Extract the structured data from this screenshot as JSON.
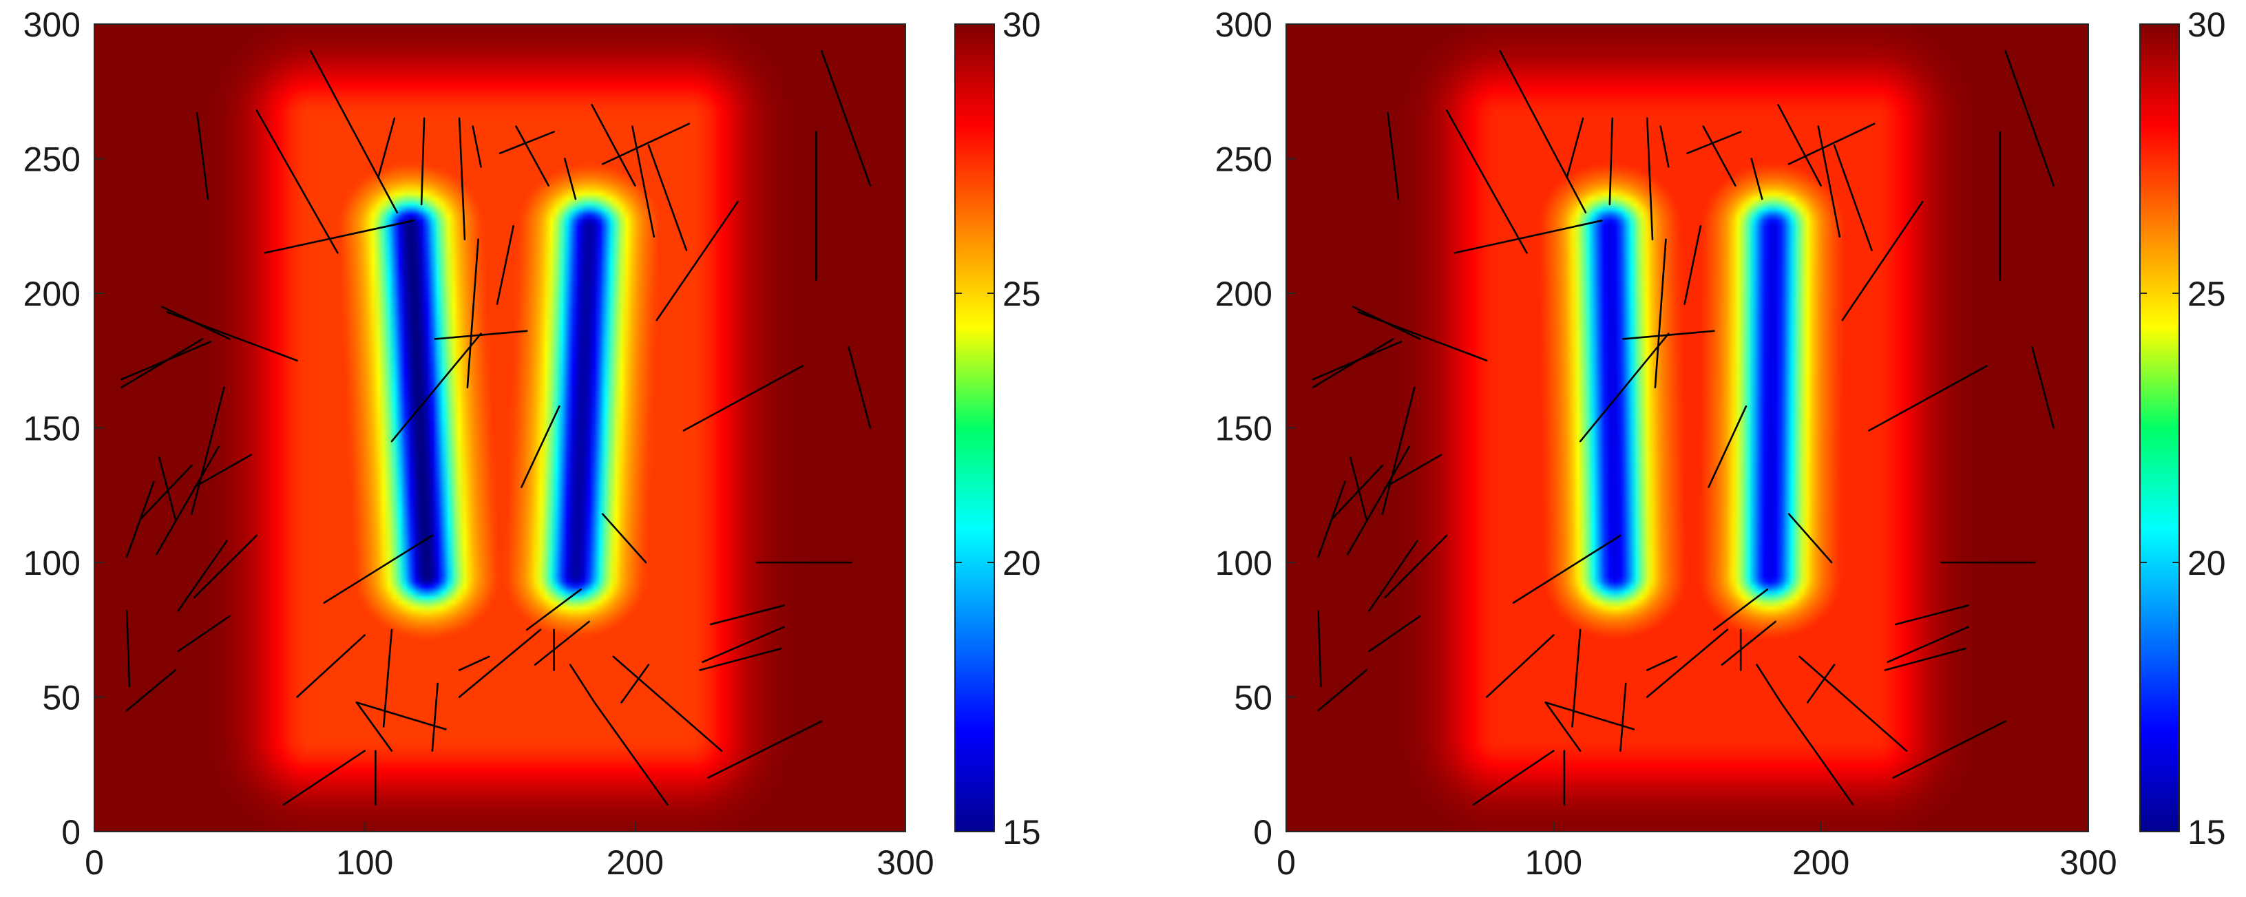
{
  "chart_data": [
    {
      "type": "heatmap",
      "title": "",
      "xlabel": "",
      "ylabel": "",
      "xlim": [
        0,
        300
      ],
      "ylim": [
        0,
        300
      ],
      "xticks": [
        "0",
        "100",
        "200",
        "300"
      ],
      "yticks": [
        "0",
        "50",
        "100",
        "150",
        "200",
        "250",
        "300"
      ],
      "colorbar": {
        "min": 15,
        "max": 30,
        "ticks": [
          "15",
          "20",
          "25",
          "30"
        ],
        "colormap": "jet"
      },
      "grid": false,
      "field": {
        "background": 30,
        "channels": [
          {
            "x_bottom": 123,
            "x_top": 117,
            "y_from": 95,
            "y_to": 225,
            "min_value": 15
          },
          {
            "x_bottom": 178,
            "x_top": 183,
            "y_from": 95,
            "y_to": 225,
            "min_value": 15.5
          }
        ],
        "influence_zone": {
          "x_from": 80,
          "x_to": 220,
          "y_from": 35,
          "y_to": 265,
          "value_near_channels": 25
        }
      },
      "fractures": [
        [
          [
            80,
            290
          ],
          [
            112,
            230
          ]
        ],
        [
          [
            38,
            267
          ],
          [
            42,
            235
          ]
        ],
        [
          [
            60,
            268
          ],
          [
            90,
            215
          ]
        ],
        [
          [
            63,
            215
          ],
          [
            118,
            227
          ]
        ],
        [
          [
            25,
            195
          ],
          [
            50,
            183
          ]
        ],
        [
          [
            27,
            193
          ],
          [
            75,
            175
          ]
        ],
        [
          [
            10,
            168
          ],
          [
            43,
            182
          ]
        ],
        [
          [
            10,
            165
          ],
          [
            40,
            183
          ]
        ],
        [
          [
            12,
            102
          ],
          [
            22,
            130
          ]
        ],
        [
          [
            17,
            116
          ],
          [
            36,
            136
          ]
        ],
        [
          [
            31,
            82
          ],
          [
            49,
            108
          ]
        ],
        [
          [
            48,
            165
          ],
          [
            36,
            118
          ]
        ],
        [
          [
            46,
            143
          ],
          [
            23,
            103
          ]
        ],
        [
          [
            24,
            139
          ],
          [
            30,
            116
          ]
        ],
        [
          [
            37,
            128
          ],
          [
            58,
            140
          ]
        ],
        [
          [
            37,
            87
          ],
          [
            60,
            110
          ]
        ],
        [
          [
            31,
            67
          ],
          [
            50,
            80
          ]
        ],
        [
          [
            12,
            82
          ],
          [
            13,
            54
          ]
        ],
        [
          [
            12,
            45
          ],
          [
            30,
            60
          ]
        ],
        [
          [
            70,
            10
          ],
          [
            100,
            30
          ]
        ],
        [
          [
            104,
            30
          ],
          [
            104,
            10
          ]
        ],
        [
          [
            97,
            48
          ],
          [
            110,
            30
          ]
        ],
        [
          [
            97,
            48
          ],
          [
            130,
            38
          ]
        ],
        [
          [
            127,
            55
          ],
          [
            125,
            30
          ]
        ],
        [
          [
            146,
            65
          ],
          [
            135,
            60
          ]
        ],
        [
          [
            75,
            50
          ],
          [
            100,
            73
          ]
        ],
        [
          [
            107,
            39
          ],
          [
            110,
            75
          ]
        ],
        [
          [
            85,
            85
          ],
          [
            125,
            110
          ]
        ],
        [
          [
            110,
            145
          ],
          [
            143,
            185
          ]
        ],
        [
          [
            126,
            183
          ],
          [
            160,
            186
          ]
        ],
        [
          [
            138,
            165
          ],
          [
            142,
            220
          ]
        ],
        [
          [
            158,
            128
          ],
          [
            172,
            158
          ]
        ],
        [
          [
            149,
            196
          ],
          [
            155,
            225
          ]
        ],
        [
          [
            105,
            243
          ],
          [
            111,
            265
          ]
        ],
        [
          [
            121,
            233
          ],
          [
            122,
            265
          ]
        ],
        [
          [
            143,
            247
          ],
          [
            140,
            262
          ]
        ],
        [
          [
            135,
            265
          ],
          [
            137,
            220
          ]
        ],
        [
          [
            150,
            252
          ],
          [
            170,
            260
          ]
        ],
        [
          [
            156,
            262
          ],
          [
            168,
            240
          ]
        ],
        [
          [
            188,
            248
          ],
          [
            220,
            263
          ]
        ],
        [
          [
            174,
            250
          ],
          [
            178,
            235
          ]
        ],
        [
          [
            184,
            270
          ],
          [
            200,
            240
          ]
        ],
        [
          [
            199,
            262
          ],
          [
            207,
            221
          ]
        ],
        [
          [
            205,
            255
          ],
          [
            219,
            216
          ]
        ],
        [
          [
            208,
            190
          ],
          [
            238,
            234
          ]
        ],
        [
          [
            218,
            149
          ],
          [
            262,
            173
          ]
        ],
        [
          [
            188,
            118
          ],
          [
            204,
            100
          ]
        ],
        [
          [
            192,
            65
          ],
          [
            232,
            30
          ]
        ],
        [
          [
            185,
            48
          ],
          [
            212,
            10
          ]
        ],
        [
          [
            205,
            62
          ],
          [
            195,
            48
          ]
        ],
        [
          [
            225,
            63
          ],
          [
            255,
            76
          ]
        ],
        [
          [
            224,
            60
          ],
          [
            254,
            68
          ]
        ],
        [
          [
            228,
            77
          ],
          [
            255,
            84
          ]
        ],
        [
          [
            245,
            100
          ],
          [
            280,
            100
          ]
        ],
        [
          [
            227,
            20
          ],
          [
            269,
            41
          ]
        ],
        [
          [
            269,
            290
          ],
          [
            287,
            240
          ]
        ],
        [
          [
            267,
            260
          ],
          [
            267,
            205
          ]
        ],
        [
          [
            279,
            180
          ],
          [
            287,
            150
          ]
        ],
        [
          [
            135,
            50
          ],
          [
            165,
            75
          ]
        ],
        [
          [
            163,
            62
          ],
          [
            183,
            78
          ]
        ],
        [
          [
            170,
            60
          ],
          [
            170,
            75
          ]
        ],
        [
          [
            176,
            62
          ],
          [
            185,
            48
          ]
        ],
        [
          [
            160,
            75
          ],
          [
            180,
            90
          ]
        ]
      ]
    },
    {
      "type": "heatmap",
      "title": "",
      "xlabel": "",
      "ylabel": "",
      "xlim": [
        0,
        300
      ],
      "ylim": [
        0,
        300
      ],
      "xticks": [
        "0",
        "100",
        "200",
        "300"
      ],
      "yticks": [
        "0",
        "50",
        "100",
        "150",
        "200",
        "250",
        "300"
      ],
      "colorbar": {
        "min": 15,
        "max": 30,
        "ticks": [
          "15",
          "20",
          "25",
          "30"
        ],
        "colormap": "jet"
      },
      "grid": false,
      "field": {
        "background": 30,
        "channels": [
          {
            "x_bottom": 123,
            "x_top": 121,
            "y_from": 95,
            "y_to": 225,
            "min_value": 16.5
          },
          {
            "x_bottom": 181,
            "x_top": 182,
            "y_from": 95,
            "y_to": 225,
            "min_value": 16.5
          }
        ],
        "influence_zone": {
          "x_from": 80,
          "x_to": 220,
          "y_from": 35,
          "y_to": 265,
          "value_near_channels": 25.5
        }
      },
      "fractures": [
        [
          [
            80,
            290
          ],
          [
            112,
            230
          ]
        ],
        [
          [
            38,
            267
          ],
          [
            42,
            235
          ]
        ],
        [
          [
            60,
            268
          ],
          [
            90,
            215
          ]
        ],
        [
          [
            63,
            215
          ],
          [
            118,
            227
          ]
        ],
        [
          [
            25,
            195
          ],
          [
            50,
            183
          ]
        ],
        [
          [
            27,
            193
          ],
          [
            75,
            175
          ]
        ],
        [
          [
            10,
            168
          ],
          [
            43,
            182
          ]
        ],
        [
          [
            10,
            165
          ],
          [
            40,
            183
          ]
        ],
        [
          [
            12,
            102
          ],
          [
            22,
            130
          ]
        ],
        [
          [
            17,
            116
          ],
          [
            36,
            136
          ]
        ],
        [
          [
            31,
            82
          ],
          [
            49,
            108
          ]
        ],
        [
          [
            48,
            165
          ],
          [
            36,
            118
          ]
        ],
        [
          [
            46,
            143
          ],
          [
            23,
            103
          ]
        ],
        [
          [
            24,
            139
          ],
          [
            30,
            116
          ]
        ],
        [
          [
            37,
            128
          ],
          [
            58,
            140
          ]
        ],
        [
          [
            37,
            87
          ],
          [
            60,
            110
          ]
        ],
        [
          [
            31,
            67
          ],
          [
            50,
            80
          ]
        ],
        [
          [
            12,
            82
          ],
          [
            13,
            54
          ]
        ],
        [
          [
            12,
            45
          ],
          [
            30,
            60
          ]
        ],
        [
          [
            70,
            10
          ],
          [
            100,
            30
          ]
        ],
        [
          [
            104,
            30
          ],
          [
            104,
            10
          ]
        ],
        [
          [
            97,
            48
          ],
          [
            110,
            30
          ]
        ],
        [
          [
            97,
            48
          ],
          [
            130,
            38
          ]
        ],
        [
          [
            127,
            55
          ],
          [
            125,
            30
          ]
        ],
        [
          [
            146,
            65
          ],
          [
            135,
            60
          ]
        ],
        [
          [
            75,
            50
          ],
          [
            100,
            73
          ]
        ],
        [
          [
            107,
            39
          ],
          [
            110,
            75
          ]
        ],
        [
          [
            85,
            85
          ],
          [
            125,
            110
          ]
        ],
        [
          [
            110,
            145
          ],
          [
            143,
            185
          ]
        ],
        [
          [
            126,
            183
          ],
          [
            160,
            186
          ]
        ],
        [
          [
            138,
            165
          ],
          [
            142,
            220
          ]
        ],
        [
          [
            158,
            128
          ],
          [
            172,
            158
          ]
        ],
        [
          [
            149,
            196
          ],
          [
            155,
            225
          ]
        ],
        [
          [
            105,
            243
          ],
          [
            111,
            265
          ]
        ],
        [
          [
            121,
            233
          ],
          [
            122,
            265
          ]
        ],
        [
          [
            143,
            247
          ],
          [
            140,
            262
          ]
        ],
        [
          [
            135,
            265
          ],
          [
            137,
            220
          ]
        ],
        [
          [
            150,
            252
          ],
          [
            170,
            260
          ]
        ],
        [
          [
            156,
            262
          ],
          [
            168,
            240
          ]
        ],
        [
          [
            188,
            248
          ],
          [
            220,
            263
          ]
        ],
        [
          [
            174,
            250
          ],
          [
            178,
            235
          ]
        ],
        [
          [
            184,
            270
          ],
          [
            200,
            240
          ]
        ],
        [
          [
            199,
            262
          ],
          [
            207,
            221
          ]
        ],
        [
          [
            205,
            255
          ],
          [
            219,
            216
          ]
        ],
        [
          [
            208,
            190
          ],
          [
            238,
            234
          ]
        ],
        [
          [
            218,
            149
          ],
          [
            262,
            173
          ]
        ],
        [
          [
            188,
            118
          ],
          [
            204,
            100
          ]
        ],
        [
          [
            192,
            65
          ],
          [
            232,
            30
          ]
        ],
        [
          [
            185,
            48
          ],
          [
            212,
            10
          ]
        ],
        [
          [
            205,
            62
          ],
          [
            195,
            48
          ]
        ],
        [
          [
            225,
            63
          ],
          [
            255,
            76
          ]
        ],
        [
          [
            224,
            60
          ],
          [
            254,
            68
          ]
        ],
        [
          [
            228,
            77
          ],
          [
            255,
            84
          ]
        ],
        [
          [
            245,
            100
          ],
          [
            280,
            100
          ]
        ],
        [
          [
            227,
            20
          ],
          [
            269,
            41
          ]
        ],
        [
          [
            269,
            290
          ],
          [
            287,
            240
          ]
        ],
        [
          [
            267,
            260
          ],
          [
            267,
            205
          ]
        ],
        [
          [
            279,
            180
          ],
          [
            287,
            150
          ]
        ],
        [
          [
            135,
            50
          ],
          [
            165,
            75
          ]
        ],
        [
          [
            163,
            62
          ],
          [
            183,
            78
          ]
        ],
        [
          [
            170,
            60
          ],
          [
            170,
            75
          ]
        ],
        [
          [
            176,
            62
          ],
          [
            185,
            48
          ]
        ],
        [
          [
            160,
            75
          ],
          [
            180,
            90
          ]
        ]
      ]
    }
  ]
}
